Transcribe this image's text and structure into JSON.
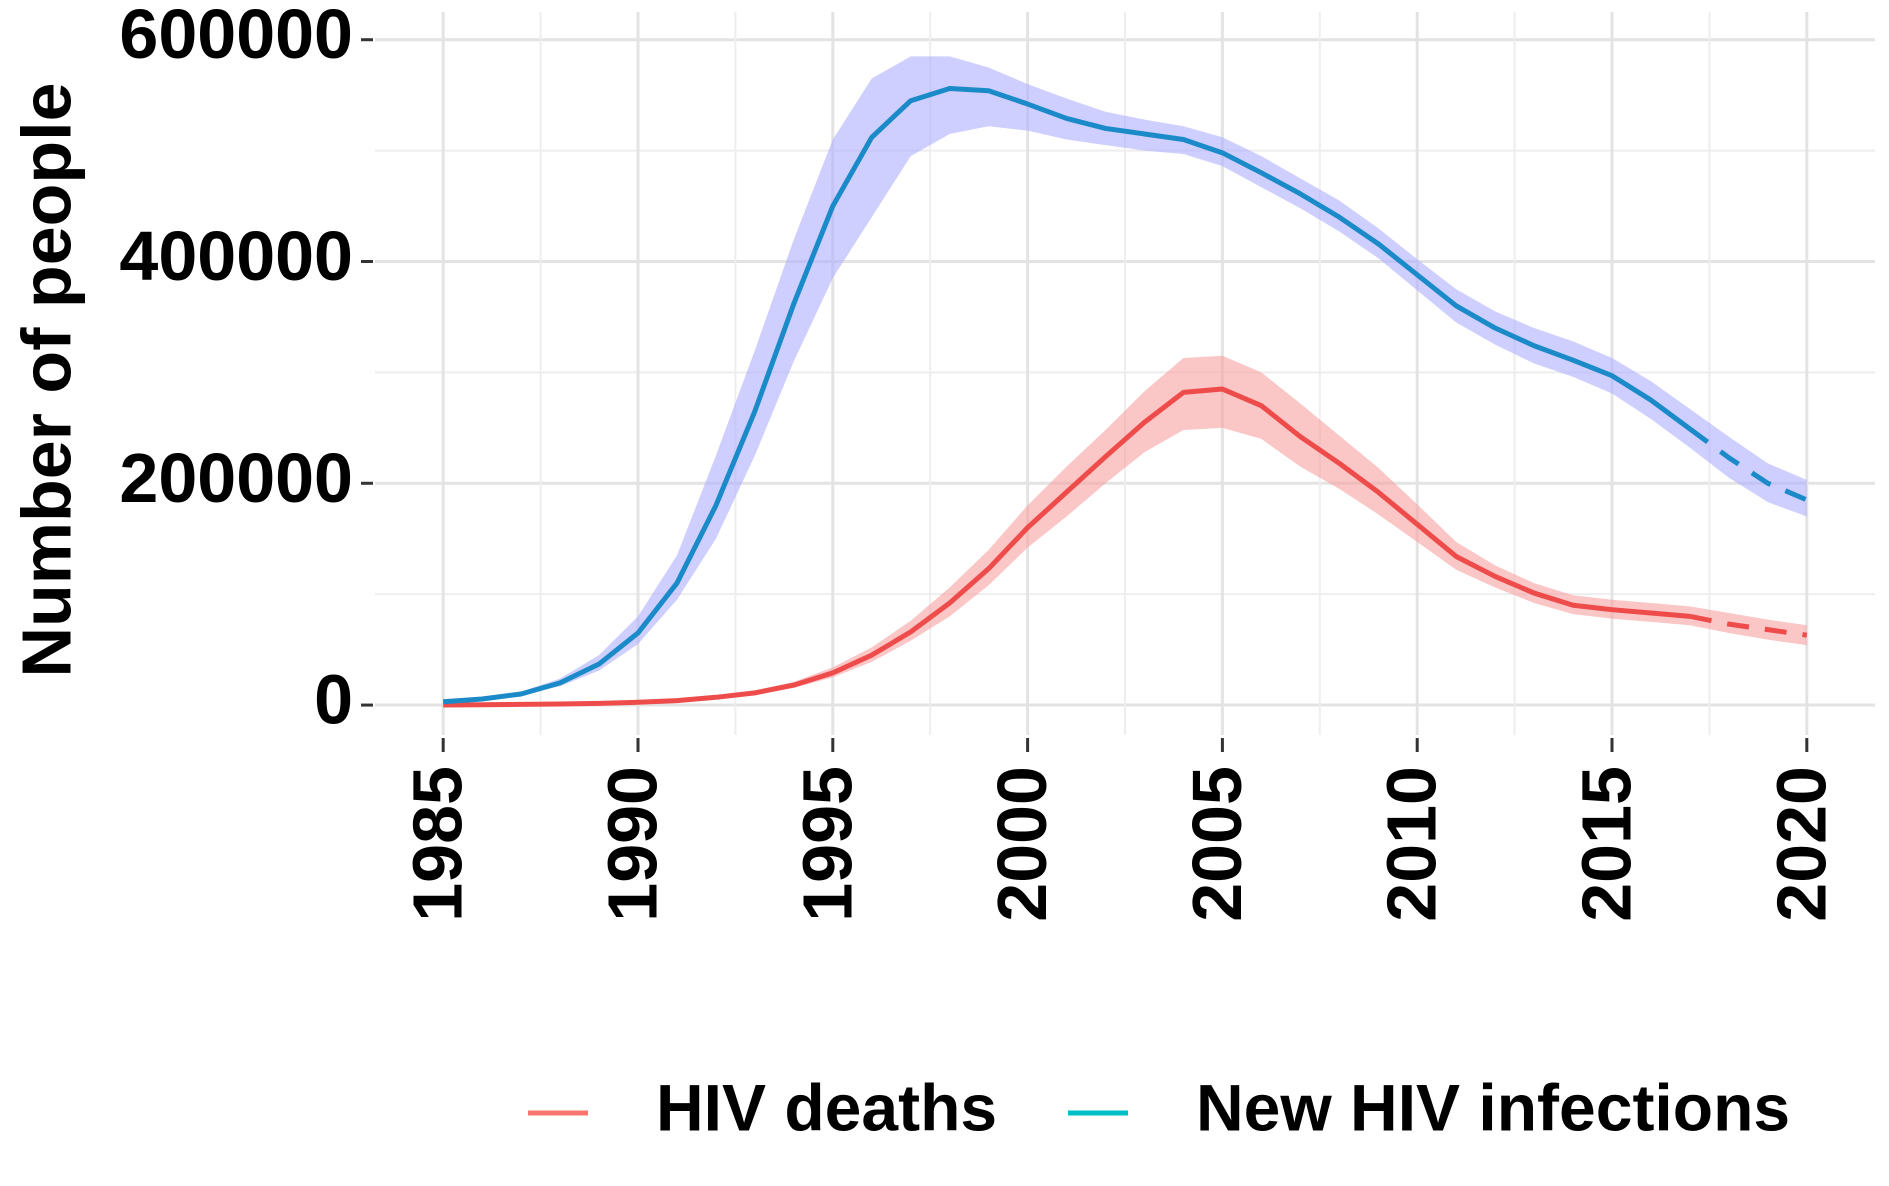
{
  "chart_data": {
    "type": "line",
    "y_label": "Number of people",
    "x": [
      1985,
      1986,
      1987,
      1988,
      1989,
      1990,
      1991,
      1992,
      1993,
      1994,
      1995,
      1996,
      1997,
      1998,
      1999,
      2000,
      2001,
      2002,
      2003,
      2004,
      2005,
      2006,
      2007,
      2008,
      2009,
      2010,
      2011,
      2012,
      2013,
      2014,
      2015,
      2016,
      2017,
      2018,
      2019,
      2020
    ],
    "xlim": [
      1983.25,
      2021.75
    ],
    "xticks": [
      1985,
      1990,
      1995,
      2000,
      2005,
      2010,
      2015,
      2020
    ],
    "ylim": [
      -27000,
      625000
    ],
    "yticks": [
      0,
      200000,
      400000,
      600000
    ],
    "grid": true,
    "series": [
      {
        "name": "HIV deaths",
        "color": "#F8766D",
        "line_color": "#EE4B4B",
        "band_color": "#F8A0A0",
        "values": [
          0,
          300,
          600,
          1000,
          1500,
          2500,
          4000,
          7000,
          11000,
          18000,
          29000,
          45000,
          66000,
          92000,
          123000,
          160000,
          192000,
          224000,
          255000,
          282000,
          285000,
          270000,
          242000,
          218000,
          192000,
          163000,
          134000,
          116000,
          101000,
          90000,
          86000,
          83000,
          80000,
          null,
          null,
          null
        ],
        "projection": [
          null,
          null,
          null,
          null,
          null,
          null,
          null,
          null,
          null,
          null,
          null,
          null,
          null,
          null,
          null,
          null,
          null,
          null,
          null,
          null,
          null,
          null,
          null,
          null,
          null,
          null,
          null,
          null,
          null,
          null,
          null,
          null,
          80000,
          73000,
          68000,
          63000
        ],
        "lower": [
          0,
          200,
          400,
          800,
          1200,
          2000,
          3300,
          6000,
          9500,
          15500,
          25000,
          39000,
          58000,
          80000,
          108000,
          142000,
          170000,
          200000,
          228000,
          248000,
          250000,
          240000,
          215000,
          195000,
          172000,
          147000,
          122000,
          106000,
          92000,
          82000,
          78000,
          75000,
          72000,
          65000,
          59000,
          54000
        ],
        "upper": [
          0,
          400,
          800,
          1300,
          1900,
          3100,
          5000,
          8500,
          13000,
          21000,
          34000,
          52000,
          76000,
          106000,
          140000,
          180000,
          215000,
          248000,
          283000,
          313000,
          315000,
          300000,
          272000,
          243000,
          214000,
          181000,
          147000,
          126000,
          110000,
          99000,
          95000,
          92000,
          89000,
          83000,
          77000,
          72000
        ]
      },
      {
        "name": "New HIV infections",
        "color": "#00BFC4",
        "line_color": "#1B8AC8",
        "band_color": "#AFAFFF",
        "values": [
          3000,
          5500,
          10000,
          20000,
          37000,
          65000,
          110000,
          180000,
          265000,
          362000,
          450000,
          512000,
          545000,
          556000,
          554000,
          542000,
          529000,
          520000,
          515000,
          510000,
          498000,
          480000,
          461000,
          440000,
          416000,
          388000,
          360000,
          340000,
          324000,
          311000,
          297000,
          275000,
          249000,
          null,
          null,
          null
        ],
        "projection": [
          null,
          null,
          null,
          null,
          null,
          null,
          null,
          null,
          null,
          null,
          null,
          null,
          null,
          null,
          null,
          null,
          null,
          null,
          null,
          null,
          null,
          null,
          null,
          null,
          null,
          null,
          null,
          null,
          null,
          null,
          null,
          null,
          249000,
          223000,
          200000,
          185000
        ],
        "lower": [
          2000,
          4500,
          9000,
          17000,
          31000,
          55000,
          95000,
          150000,
          225000,
          310000,
          385000,
          440000,
          495000,
          515000,
          522000,
          518000,
          510000,
          505000,
          500000,
          497000,
          486000,
          467000,
          448000,
          427000,
          403000,
          374000,
          345000,
          325000,
          308000,
          296000,
          281000,
          258000,
          232000,
          205000,
          183000,
          170000
        ],
        "upper": [
          4000,
          6500,
          12000,
          24000,
          45000,
          80000,
          135000,
          225000,
          320000,
          420000,
          510000,
          565000,
          585000,
          585000,
          575000,
          560000,
          547000,
          535000,
          528000,
          522000,
          512000,
          495000,
          475000,
          455000,
          430000,
          402000,
          375000,
          355000,
          340000,
          328000,
          313000,
          292000,
          267000,
          242000,
          218000,
          203000
        ]
      }
    ]
  }
}
